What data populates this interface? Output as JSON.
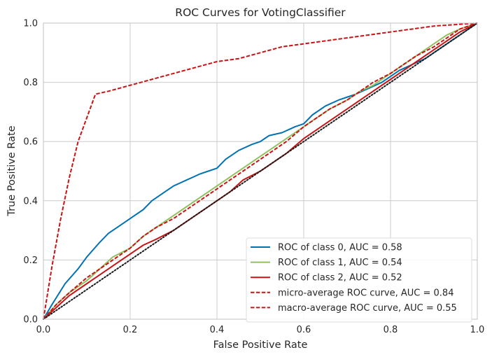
{
  "chart_data": {
    "type": "line",
    "title": "ROC Curves for VotingClassifier",
    "xlabel": "False Positive Rate",
    "ylabel": "True Positive Rate",
    "xlim": [
      0,
      1
    ],
    "ylim": [
      0,
      1
    ],
    "xticks": [
      "0.0",
      "0.2",
      "0.4",
      "0.6",
      "0.8",
      "1.0"
    ],
    "yticks": [
      "0.0",
      "0.2",
      "0.4",
      "0.6",
      "0.8",
      "1.0"
    ],
    "grid": true,
    "legend_position": "lower-right",
    "series": [
      {
        "name": "ROC of class 0, AUC = 0.58",
        "color": "#0072b2",
        "dash": "solid",
        "x": [
          0,
          0.02,
          0.05,
          0.08,
          0.1,
          0.13,
          0.15,
          0.18,
          0.2,
          0.23,
          0.25,
          0.28,
          0.3,
          0.33,
          0.36,
          0.38,
          0.4,
          0.42,
          0.45,
          0.48,
          0.5,
          0.52,
          0.55,
          0.58,
          0.6,
          0.62,
          0.65,
          0.68,
          0.7,
          0.72,
          0.75,
          0.78,
          0.8,
          0.82,
          0.85,
          0.88,
          0.9,
          0.92,
          0.95,
          0.98,
          1.0
        ],
        "y": [
          0,
          0.05,
          0.12,
          0.17,
          0.21,
          0.26,
          0.29,
          0.32,
          0.34,
          0.37,
          0.4,
          0.43,
          0.45,
          0.47,
          0.49,
          0.5,
          0.51,
          0.54,
          0.57,
          0.59,
          0.6,
          0.62,
          0.63,
          0.65,
          0.66,
          0.69,
          0.72,
          0.74,
          0.75,
          0.76,
          0.78,
          0.8,
          0.82,
          0.84,
          0.86,
          0.88,
          0.9,
          0.92,
          0.95,
          0.98,
          1.0
        ]
      },
      {
        "name": "ROC of class 1, AUC = 0.54",
        "color": "#90c060",
        "dash": "solid",
        "x": [
          0,
          0.03,
          0.06,
          0.1,
          0.13,
          0.16,
          0.2,
          0.23,
          0.26,
          0.3,
          0.33,
          0.36,
          0.4,
          0.43,
          0.46,
          0.5,
          0.53,
          0.56,
          0.6,
          0.63,
          0.66,
          0.7,
          0.73,
          0.76,
          0.8,
          0.83,
          0.86,
          0.9,
          0.93,
          0.96,
          1.0
        ],
        "y": [
          0,
          0.05,
          0.09,
          0.13,
          0.17,
          0.21,
          0.24,
          0.28,
          0.31,
          0.35,
          0.38,
          0.41,
          0.45,
          0.48,
          0.51,
          0.55,
          0.58,
          0.61,
          0.65,
          0.68,
          0.71,
          0.74,
          0.77,
          0.79,
          0.83,
          0.86,
          0.89,
          0.93,
          0.96,
          0.98,
          1.0
        ]
      },
      {
        "name": "ROC of class 2, AUC = 0.52",
        "color": "#c81414",
        "dash": "solid",
        "x": [
          0,
          0.03,
          0.06,
          0.1,
          0.13,
          0.16,
          0.2,
          0.23,
          0.26,
          0.3,
          0.33,
          0.36,
          0.4,
          0.43,
          0.46,
          0.5,
          0.53,
          0.56,
          0.6,
          0.63,
          0.66,
          0.7,
          0.73,
          0.76,
          0.8,
          0.83,
          0.86,
          0.9,
          0.93,
          0.96,
          1.0
        ],
        "y": [
          0,
          0.04,
          0.08,
          0.12,
          0.15,
          0.18,
          0.22,
          0.25,
          0.27,
          0.3,
          0.33,
          0.36,
          0.4,
          0.43,
          0.47,
          0.5,
          0.53,
          0.56,
          0.61,
          0.64,
          0.67,
          0.71,
          0.74,
          0.77,
          0.81,
          0.84,
          0.87,
          0.91,
          0.94,
          0.97,
          1.0
        ]
      },
      {
        "name": "micro-average ROC curve, AUC = 0.84",
        "color": "#c81414",
        "dash": "dashed",
        "x": [
          0,
          0.02,
          0.04,
          0.06,
          0.08,
          0.1,
          0.12,
          0.15,
          0.2,
          0.25,
          0.3,
          0.35,
          0.4,
          0.45,
          0.5,
          0.55,
          0.6,
          0.65,
          0.7,
          0.75,
          0.8,
          0.85,
          0.9,
          0.95,
          1.0
        ],
        "y": [
          0,
          0.18,
          0.34,
          0.48,
          0.6,
          0.68,
          0.76,
          0.77,
          0.79,
          0.81,
          0.83,
          0.85,
          0.87,
          0.88,
          0.9,
          0.92,
          0.93,
          0.94,
          0.95,
          0.96,
          0.97,
          0.98,
          0.99,
          0.995,
          1.0
        ]
      },
      {
        "name": "macro-average ROC curve, AUC = 0.55",
        "color": "#c81414",
        "dash": "dashed",
        "x": [
          0,
          0.03,
          0.06,
          0.1,
          0.13,
          0.16,
          0.2,
          0.23,
          0.26,
          0.3,
          0.33,
          0.36,
          0.4,
          0.43,
          0.46,
          0.5,
          0.53,
          0.56,
          0.6,
          0.63,
          0.66,
          0.7,
          0.73,
          0.76,
          0.8,
          0.83,
          0.86,
          0.9,
          0.93,
          0.96,
          1.0
        ],
        "y": [
          0,
          0.05,
          0.09,
          0.14,
          0.17,
          0.2,
          0.24,
          0.28,
          0.31,
          0.34,
          0.37,
          0.4,
          0.44,
          0.47,
          0.5,
          0.54,
          0.57,
          0.6,
          0.65,
          0.68,
          0.71,
          0.74,
          0.77,
          0.8,
          0.83,
          0.86,
          0.89,
          0.92,
          0.95,
          0.98,
          1.0
        ]
      }
    ],
    "reference_line": {
      "x": [
        0,
        1
      ],
      "y": [
        0,
        1
      ],
      "color": "#1a1a1a",
      "dash": "dotted"
    },
    "colors": {
      "plot_background": "#ffffff",
      "grid": "#cccccc",
      "frame": "#cccccc"
    }
  }
}
